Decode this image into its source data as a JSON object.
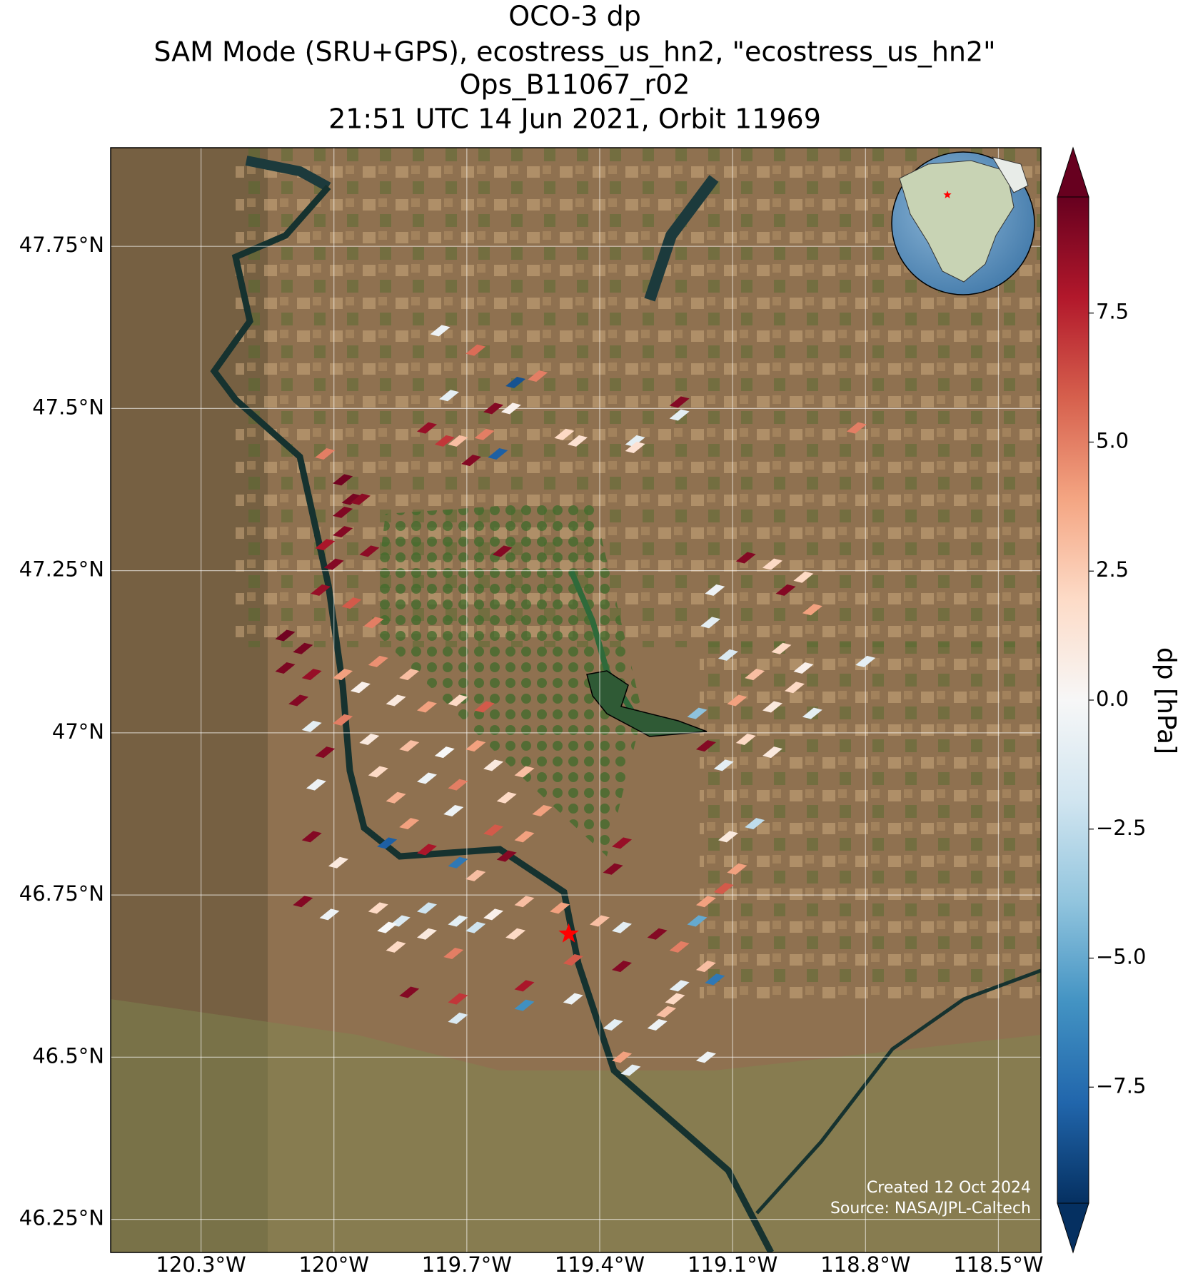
{
  "chart_data": {
    "type": "swath_map",
    "title": [
      "OCO-3 dp",
      "SAM Mode (SRU+GPS), ecostress_us_hn2, \"ecostress_us_hn2\"",
      "Ops_B11067_r02",
      "21:51 UTC 14 Jun 2021, Orbit 11969"
    ],
    "xlim": [
      -120.504,
      -118.404
    ],
    "ylim": [
      46.199,
      47.902
    ],
    "xticks": [
      {
        "value": -120.3,
        "label": "120.3°W"
      },
      {
        "value": -120.0,
        "label": "120°W"
      },
      {
        "value": -119.7,
        "label": "119.7°W"
      },
      {
        "value": -119.4,
        "label": "119.4°W"
      },
      {
        "value": -119.1,
        "label": "119.1°W"
      },
      {
        "value": -118.8,
        "label": "118.8°W"
      },
      {
        "value": -118.5,
        "label": "118.5°W"
      }
    ],
    "yticks": [
      {
        "value": 47.75,
        "label": "47.75°N"
      },
      {
        "value": 47.5,
        "label": "47.5°N"
      },
      {
        "value": 47.25,
        "label": "47.25°N"
      },
      {
        "value": 47.0,
        "label": "47°N"
      },
      {
        "value": 46.75,
        "label": "46.75°N"
      },
      {
        "value": 46.5,
        "label": "46.5°N"
      },
      {
        "value": 46.25,
        "label": "46.25°N"
      }
    ],
    "grid": true,
    "colorbar_label": "dp [hPa]",
    "clim": [
      -9.75,
      9.75
    ],
    "cticks": [
      {
        "value": 7.5,
        "label": "7.5"
      },
      {
        "value": 5.0,
        "label": "5.0"
      },
      2.5,
      {
        "value": 0.0,
        "label": "0.0"
      },
      {
        "value": -2.5,
        "label": "−2.5"
      },
      {
        "value": -5.0,
        "label": "−5.0"
      },
      {
        "value": -7.5,
        "label": "−7.5"
      }
    ],
    "colormap": [
      "#053061",
      "#2166ac",
      "#4393c3",
      "#92c5de",
      "#d1e5f0",
      "#f7f7f7",
      "#fddbc7",
      "#f4a582",
      "#d6604d",
      "#b2182b",
      "#67001f"
    ],
    "target": {
      "lon": -119.47,
      "lat": 46.69,
      "color": "#ff0000"
    },
    "footer": [
      "Created 12 Oct 2024",
      "Source: NASA/JPL-Caltech"
    ],
    "soundings": {
      "lon": [
        -119.76,
        -119.68,
        -119.59,
        -119.54,
        -119.74,
        -119.64,
        -119.6,
        -119.79,
        -119.75,
        -119.72,
        -119.63,
        -119.66,
        -119.69,
        -119.48,
        -119.45,
        -119.32,
        -119.32,
        -119.22,
        -119.22,
        -118.82,
        -119.62,
        -119.98,
        -119.96,
        -119.98,
        -119.94,
        -119.98,
        -120.02,
        -120.02,
        -120.0,
        -120.03,
        -119.92,
        -119.96,
        -119.91,
        -120.11,
        -120.07,
        -120.11,
        -120.05,
        -120.08,
        -120.05,
        -120.02,
        -120.04,
        -120.05,
        -119.99,
        -120.07,
        -120.01,
        -119.98,
        -119.94,
        -119.9,
        -119.83,
        -119.86,
        -119.79,
        -119.72,
        -119.66,
        -119.98,
        -119.92,
        -119.83,
        -119.75,
        -119.68,
        -119.64,
        -119.57,
        -119.9,
        -119.86,
        -119.79,
        -119.72,
        -119.61,
        -119.53,
        -119.83,
        -119.73,
        -119.64,
        -119.88,
        -119.79,
        -119.72,
        -119.61,
        -119.57,
        -119.68,
        -119.35,
        -119.37,
        -119.9,
        -119.85,
        -119.79,
        -119.72,
        -119.64,
        -119.57,
        -119.49,
        -119.88,
        -119.79,
        -119.68,
        -119.59,
        -119.4,
        -119.35,
        -119.27,
        -119.22,
        -119.86,
        -119.73,
        -119.46,
        -119.35,
        -119.18,
        -119.16,
        -119.14,
        -119.83,
        -119.72,
        -119.57,
        -119.46,
        -119.57,
        -119.72,
        -119.23,
        -119.22,
        -119.25,
        -119.37,
        -119.35,
        -119.33,
        -119.16,
        -119.27,
        -119.14,
        -119.15,
        -119.07,
        -119.01,
        -118.98,
        -118.94,
        -118.92,
        -119.11,
        -119.05,
        -118.99,
        -118.94,
        -119.09,
        -119.01,
        -118.96,
        -118.92,
        -119.18,
        -119.16,
        -119.12,
        -119.07,
        -119.01,
        -119.05,
        -119.11,
        -119.09,
        -119.12,
        -119.16,
        -118.8
      ],
      "lat": [
        47.62,
        47.59,
        47.54,
        47.55,
        47.52,
        47.5,
        47.5,
        47.47,
        47.45,
        47.45,
        47.43,
        47.46,
        47.42,
        47.46,
        47.45,
        47.45,
        47.44,
        47.51,
        47.49,
        47.47,
        47.28,
        47.39,
        47.36,
        47.34,
        47.36,
        47.31,
        47.43,
        47.29,
        47.26,
        47.22,
        47.28,
        47.2,
        47.17,
        47.15,
        47.13,
        47.1,
        47.09,
        47.05,
        47.01,
        46.97,
        46.92,
        46.84,
        46.8,
        46.74,
        46.72,
        47.09,
        47.07,
        47.11,
        47.09,
        47.05,
        47.04,
        47.05,
        47.04,
        47.02,
        46.99,
        46.98,
        46.97,
        46.98,
        46.95,
        46.94,
        46.94,
        46.9,
        46.93,
        46.92,
        46.9,
        46.88,
        46.86,
        46.88,
        46.85,
        46.83,
        46.82,
        46.8,
        46.81,
        46.84,
        46.78,
        46.83,
        46.79,
        46.73,
        46.71,
        46.73,
        46.71,
        46.72,
        46.74,
        46.73,
        46.7,
        46.69,
        46.7,
        46.69,
        46.71,
        46.7,
        46.69,
        46.67,
        46.67,
        46.66,
        46.65,
        46.64,
        46.71,
        46.64,
        46.62,
        46.6,
        46.59,
        46.61,
        46.59,
        46.58,
        46.56,
        46.59,
        46.61,
        46.57,
        46.55,
        46.5,
        46.48,
        46.5,
        46.55,
        47.22,
        47.17,
        47.27,
        47.26,
        47.22,
        47.24,
        47.19,
        47.12,
        47.09,
        47.13,
        47.1,
        47.05,
        47.04,
        47.07,
        47.03,
        47.03,
        46.98,
        46.95,
        46.99,
        46.97,
        46.86,
        46.84,
        46.79,
        46.76,
        46.74,
        47.11
      ],
      "dp": [
        -0.5,
        5.5,
        -8.5,
        5,
        -1,
        9,
        0.5,
        8.5,
        7,
        3,
        -8,
        5,
        9,
        2,
        1.5,
        -1,
        1.5,
        9,
        -1,
        5,
        9,
        9.5,
        9.3,
        9.1,
        8.8,
        9,
        5,
        8,
        9,
        8.5,
        8.8,
        6,
        5,
        9.5,
        9.3,
        9.2,
        8.5,
        9,
        -1,
        9,
        -0.5,
        9,
        1,
        9,
        -0.5,
        4,
        0.5,
        4.5,
        3,
        1,
        4,
        2,
        6,
        5,
        1,
        3,
        0,
        4,
        1,
        3,
        2,
        3.5,
        -0.5,
        5,
        2,
        4,
        4,
        -0.5,
        6,
        -8,
        8,
        -7,
        9,
        4,
        3,
        8.5,
        9,
        2,
        -1.5,
        -2,
        -1,
        0.5,
        3,
        4,
        0,
        1,
        -2,
        2,
        3,
        -1,
        9,
        5,
        2,
        5,
        6,
        9,
        -5,
        3,
        -7,
        9,
        7,
        8,
        -0.5,
        -6,
        -1.5,
        2,
        -1,
        3,
        -1,
        4,
        -1,
        -0.5,
        -0.5,
        -0.5,
        -1,
        9,
        2,
        9,
        2,
        4,
        -1.5,
        3,
        2,
        0.5,
        4,
        1,
        2,
        -1,
        -4,
        9,
        -1,
        2,
        1,
        -2.5,
        1,
        4,
        6,
        4,
        -1
      ]
    }
  }
}
